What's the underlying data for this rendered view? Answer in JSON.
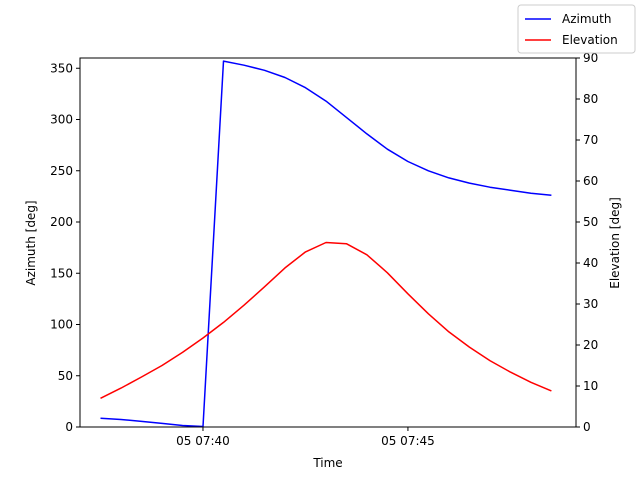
{
  "chart_data": {
    "type": "line",
    "xlabel": "Time",
    "ylabel_left": "Azimuth [deg]",
    "ylabel_right": "Elevation [deg]",
    "x_ticks": [
      "05 07:40",
      "05 07:45"
    ],
    "x_tick_minutes": [
      40,
      45
    ],
    "xlim_minutes": [
      37.0,
      49.1
    ],
    "ylim_left": [
      0,
      360
    ],
    "yticks_left": [
      0,
      50,
      100,
      150,
      200,
      250,
      300,
      350
    ],
    "ylim_right": [
      0,
      90
    ],
    "yticks_right": [
      0,
      10,
      20,
      30,
      40,
      50,
      60,
      70,
      80,
      90
    ],
    "legend_location": "top-right",
    "grid": false,
    "series": [
      {
        "name": "Azimuth",
        "axis": "left",
        "color": "#0000ff",
        "x_minutes": [
          37.5,
          38.0,
          38.5,
          39.0,
          39.5,
          40.0,
          40.5,
          41.0,
          41.5,
          42.0,
          42.5,
          43.0,
          43.5,
          44.0,
          44.5,
          45.0,
          45.5,
          46.0,
          46.5,
          47.0,
          47.5,
          48.0,
          48.5
        ],
        "values": [
          8.5,
          7.3,
          5.5,
          3.5,
          1.5,
          0.5,
          357,
          353,
          348,
          341,
          331,
          318,
          302,
          286,
          271,
          259,
          250,
          243,
          238,
          234,
          231,
          228,
          226
        ]
      },
      {
        "name": "Elevation",
        "axis": "right",
        "color": "#ff0000",
        "x_minutes": [
          37.5,
          38.0,
          38.5,
          39.0,
          39.5,
          40.0,
          40.5,
          41.0,
          41.5,
          42.0,
          42.5,
          43.0,
          43.5,
          44.0,
          44.5,
          45.0,
          45.5,
          46.0,
          46.5,
          47.0,
          47.5,
          48.0,
          48.5
        ],
        "values": [
          7.0,
          9.5,
          12.2,
          15.0,
          18.2,
          21.7,
          25.5,
          29.7,
          34.2,
          38.8,
          42.7,
          45.0,
          44.7,
          42.0,
          37.6,
          32.5,
          27.6,
          23.2,
          19.5,
          16.2,
          13.4,
          10.9,
          8.8
        ]
      }
    ]
  }
}
